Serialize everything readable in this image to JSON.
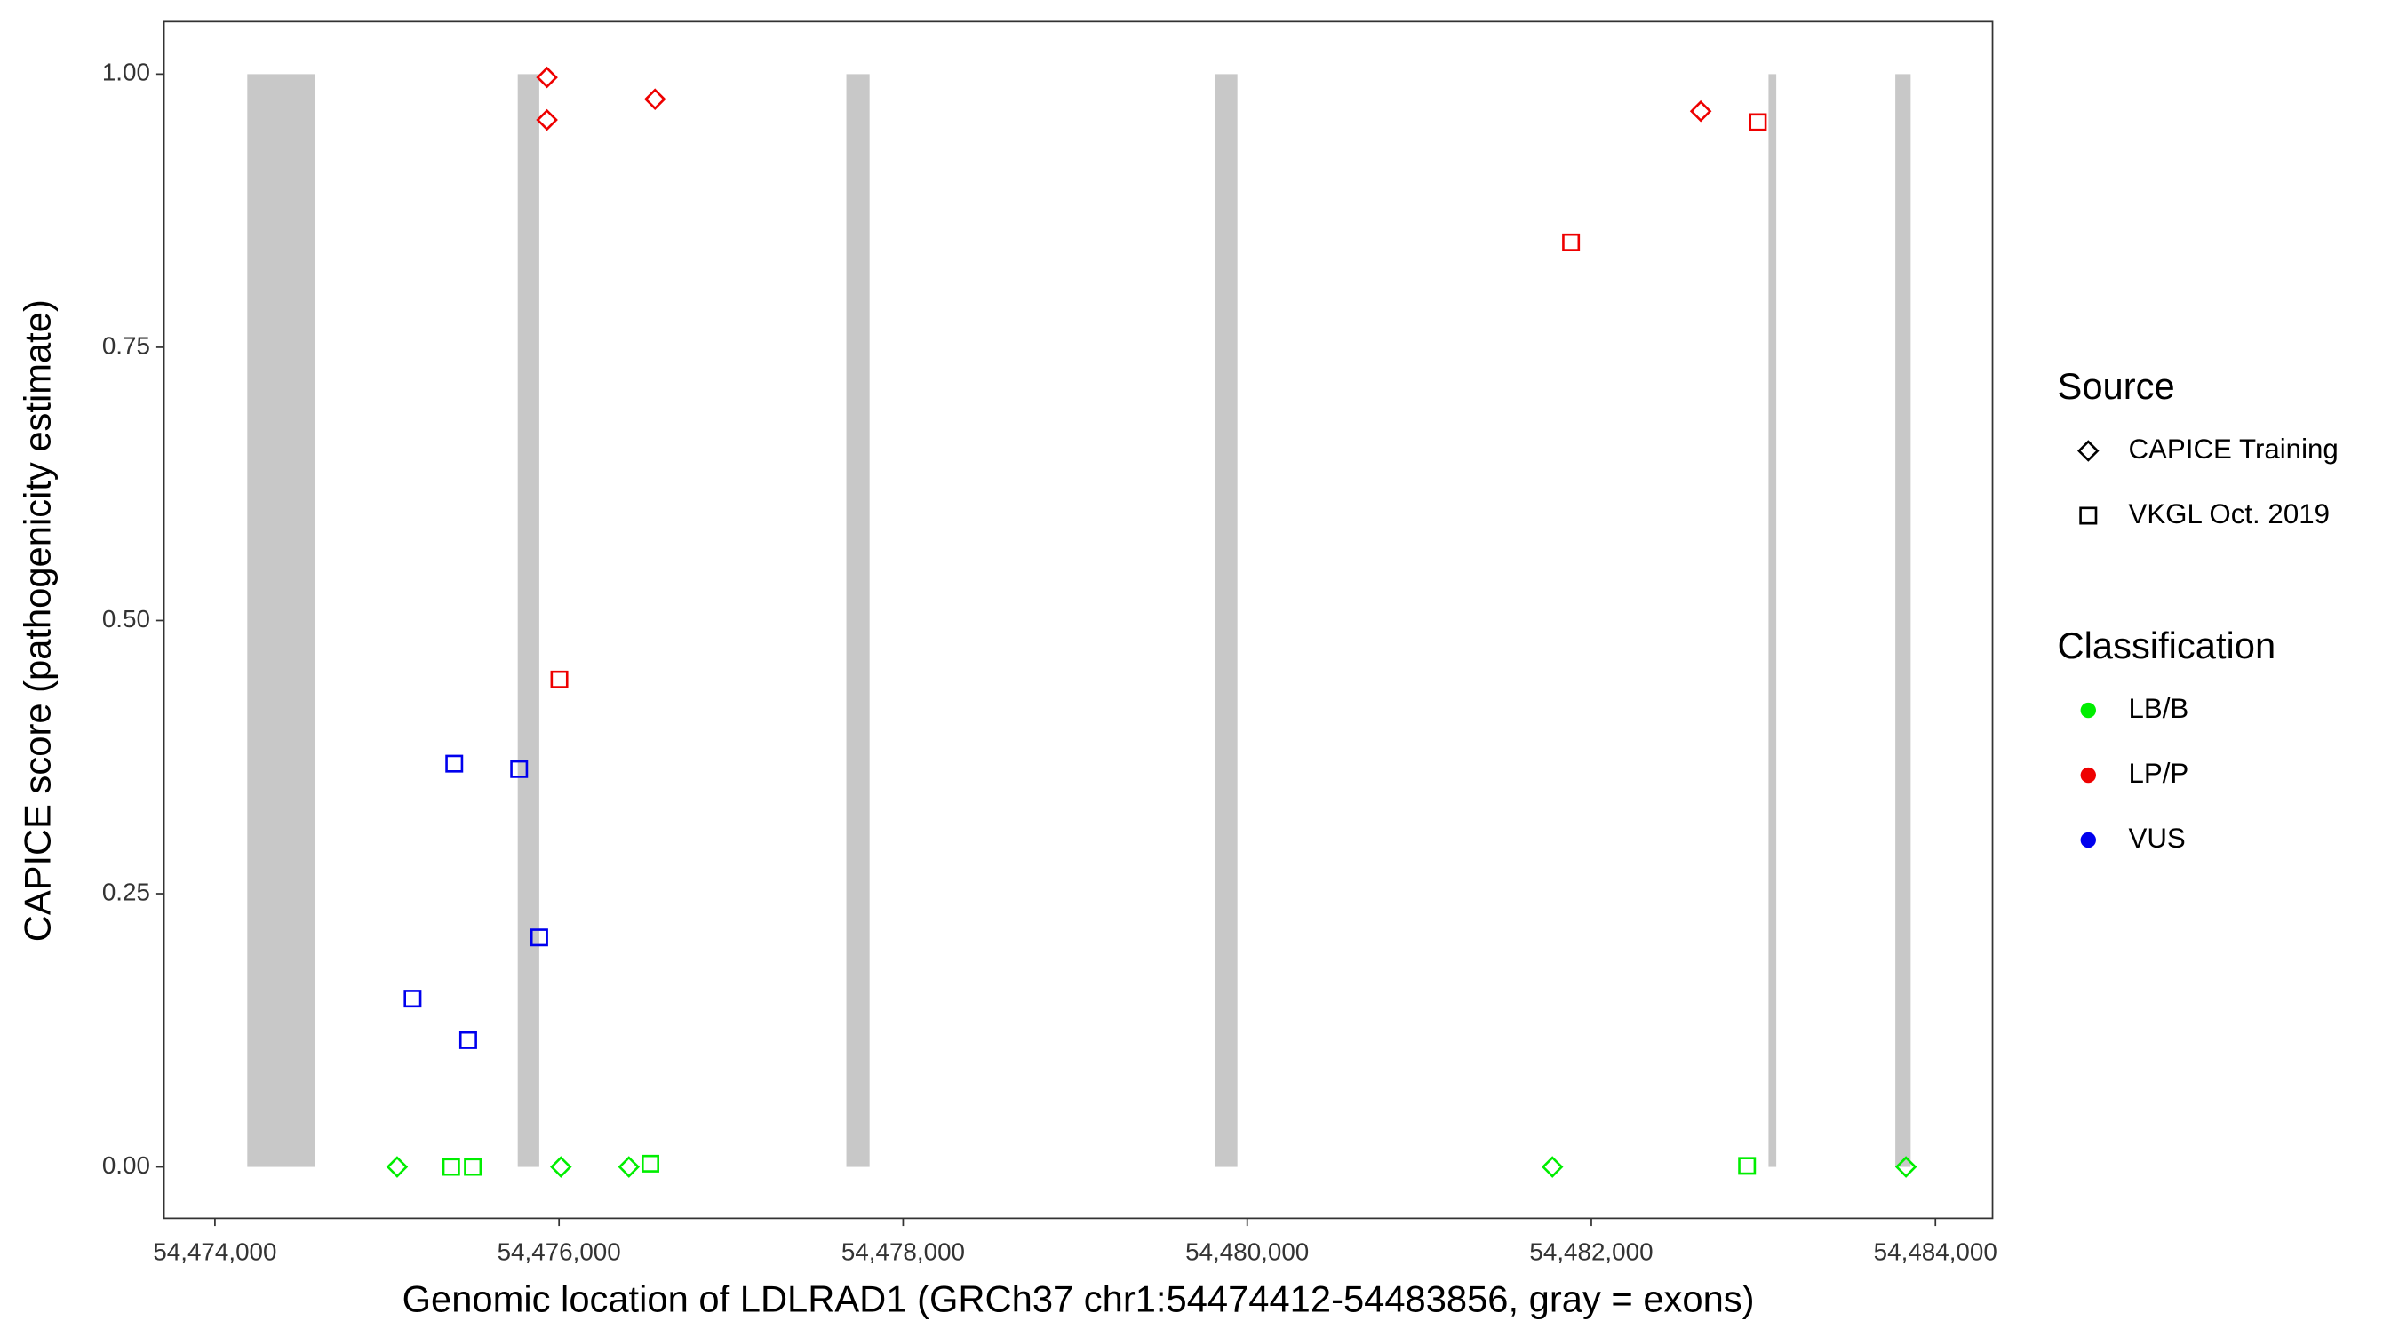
{
  "chart_data": {
    "type": "scatter",
    "x_label": "Genomic location of LDLRAD1 (GRCh37 chr1:54474412-54483856, gray = exons)",
    "y_label": "CAPICE score (pathogenicity estimate)",
    "xlim": [
      54473704,
      54484332
    ],
    "ylim": [
      -0.047,
      1.048
    ],
    "xticks": [
      {
        "value": 54474000,
        "label": "54,474,000"
      },
      {
        "value": 54476000,
        "label": "54,476,000"
      },
      {
        "value": 54478000,
        "label": "54,478,000"
      },
      {
        "value": 54480000,
        "label": "54,480,000"
      },
      {
        "value": 54482000,
        "label": "54,482,000"
      },
      {
        "value": 54484000,
        "label": "54,484,000"
      }
    ],
    "yticks": [
      {
        "value": 0,
        "label": "0.00"
      },
      {
        "value": 0.25,
        "label": "0.25"
      },
      {
        "value": 0.5,
        "label": "0.50"
      },
      {
        "value": 0.75,
        "label": "0.75"
      },
      {
        "value": 1,
        "label": "1.00"
      }
    ],
    "exons": [
      [
        54474188,
        54474583
      ],
      [
        54475760,
        54475885
      ],
      [
        54477670,
        54477805
      ],
      [
        54479815,
        54479943
      ],
      [
        54483030,
        54483075
      ],
      [
        54483767,
        54483856
      ]
    ],
    "exon_color": "#c8c8c8",
    "source_title": "Source",
    "sources": [
      {
        "name": "CAPICE Training",
        "shape": "diamond"
      },
      {
        "name": "VKGL Oct. 2019",
        "shape": "square"
      }
    ],
    "classification_title": "Classification",
    "classifications": [
      {
        "name": "LB/B",
        "color": "#00ee00"
      },
      {
        "name": "LP/P",
        "color": "#ee0000"
      },
      {
        "name": "VUS",
        "color": "#0000ee"
      }
    ],
    "series": [
      {
        "classification": 0,
        "source": 0,
        "x": [
          54475059,
          54476011,
          54476406,
          54481774,
          54483829
        ],
        "values": [
          0,
          0,
          0,
          0,
          0
        ]
      },
      {
        "classification": 0,
        "source": 1,
        "x": [
          54475373,
          54475499,
          54476531,
          54482905
        ],
        "values": [
          0,
          0,
          0.003,
          0.001
        ]
      },
      {
        "classification": 1,
        "source": 0,
        "x": [
          54475930,
          54475930,
          54476558,
          54482636
        ],
        "values": [
          0.997,
          0.958,
          0.977,
          0.966
        ]
      },
      {
        "classification": 1,
        "source": 1,
        "x": [
          54476002,
          54481882,
          54482968
        ],
        "values": [
          0.446,
          0.846,
          0.956
        ]
      },
      {
        "classification": 2,
        "source": 1,
        "x": [
          54475391,
          54475768,
          54475885,
          54475149,
          54475472
        ],
        "values": [
          0.369,
          0.364,
          0.21,
          0.154,
          0.116
        ]
      }
    ]
  }
}
